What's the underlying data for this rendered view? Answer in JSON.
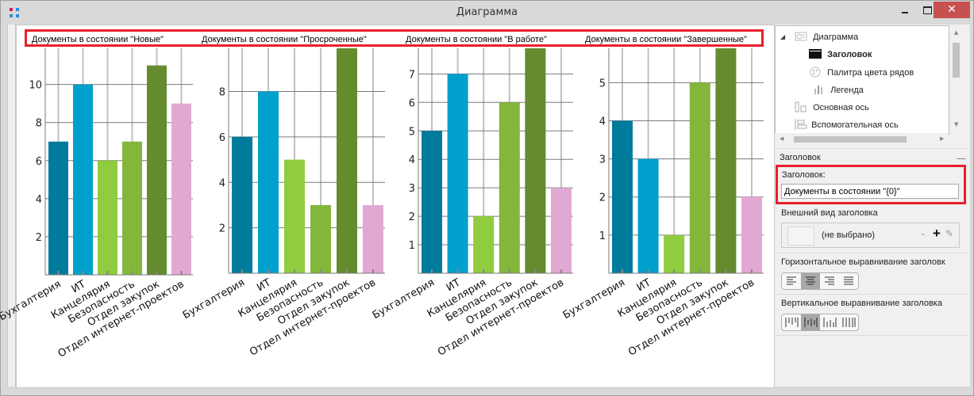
{
  "window": {
    "title": "Диаграмма",
    "close_glyph": "✕"
  },
  "colors": {
    "series": [
      "#007b9c",
      "#00a0cc",
      "#8fcc3f",
      "#83b63a",
      "#648b2e",
      "#e2a8d4"
    ],
    "highlight": "#e8202a",
    "close_button": "#c75050"
  },
  "chart_data": [
    {
      "type": "bar",
      "title": "Документы в состоянии \"Новые\"",
      "categories": [
        "Бухгалтерия",
        "ИТ",
        "Канцелярия",
        "Безопасность",
        "Отдел закупок",
        "Отдел интернет-проектов"
      ],
      "values": [
        7,
        10,
        6,
        7,
        11,
        9
      ],
      "yticks": [
        2,
        4,
        6,
        8,
        10
      ],
      "ylim": [
        0,
        11.9
      ],
      "grid": true,
      "xlabel": "",
      "ylabel": ""
    },
    {
      "type": "bar",
      "title": "Документы в состоянии \"Просроченные\"",
      "categories": [
        "Бухгалтерия",
        "ИТ",
        "Канцелярия",
        "Безопасность",
        "Отдел закупок",
        "Отдел интернет-проектов"
      ],
      "values": [
        6,
        8,
        5,
        3,
        10,
        3
      ],
      "yticks": [
        2,
        4,
        6,
        8
      ],
      "ylim": [
        0,
        9.9
      ],
      "grid": true,
      "xlabel": "",
      "ylabel": ""
    },
    {
      "type": "bar",
      "title": "Документы в состоянии \"В работе\"",
      "categories": [
        "Бухгалтерия",
        "ИТ",
        "Канцелярия",
        "Безопасность",
        "Отдел закупок",
        "Отдел интернет-проектов"
      ],
      "values": [
        5,
        7,
        2,
        6,
        8,
        3
      ],
      "yticks": [
        1,
        2,
        3,
        4,
        5,
        6,
        7
      ],
      "ylim": [
        0,
        7.9
      ],
      "grid": true,
      "xlabel": "",
      "ylabel": ""
    },
    {
      "type": "bar",
      "title": "Документы в состоянии \"Завершенные\"",
      "categories": [
        "Бухгалтерия",
        "ИТ",
        "Канцелярия",
        "Безопасность",
        "Отдел закупок",
        "Отдел интернет-проектов"
      ],
      "values": [
        4,
        3,
        1,
        5,
        6,
        2
      ],
      "yticks": [
        1,
        2,
        3,
        4,
        5
      ],
      "ylim": [
        0,
        5.9
      ],
      "grid": true,
      "xlabel": "",
      "ylabel": ""
    }
  ],
  "tree": {
    "items": [
      {
        "label": "Диаграмма",
        "icon": "chart-icon",
        "bold": false
      },
      {
        "label": "Заголовок",
        "icon": "title-icon",
        "bold": true
      },
      {
        "label": "Палитра цвета рядов",
        "icon": "palette-icon",
        "bold": false
      },
      {
        "label": "Легенда",
        "icon": "legend-icon",
        "bold": false
      },
      {
        "label": "Основная ось",
        "icon": "primary-axis-icon",
        "bold": false
      },
      {
        "label": "Вспомогательная ось",
        "icon": "secondary-axis-icon",
        "bold": false
      }
    ]
  },
  "properties": {
    "section_title": "Заголовок",
    "collapse_glyph": "—",
    "title_label": "Заголовок:",
    "title_value": "Документы в состоянии \"{0}\"",
    "appearance_label": "Внешний вид заголовка",
    "appearance_value": "(не выбрано)",
    "halign_label": "Горизонтальное выравнивание заголовк",
    "halign_options": [
      "left",
      "center",
      "right",
      "justify"
    ],
    "halign_selected": "center",
    "valign_label": "Вертикальное выравнивание заголовка",
    "valign_options": [
      "top",
      "center",
      "bottom",
      "stretch"
    ],
    "valign_selected": "center"
  }
}
